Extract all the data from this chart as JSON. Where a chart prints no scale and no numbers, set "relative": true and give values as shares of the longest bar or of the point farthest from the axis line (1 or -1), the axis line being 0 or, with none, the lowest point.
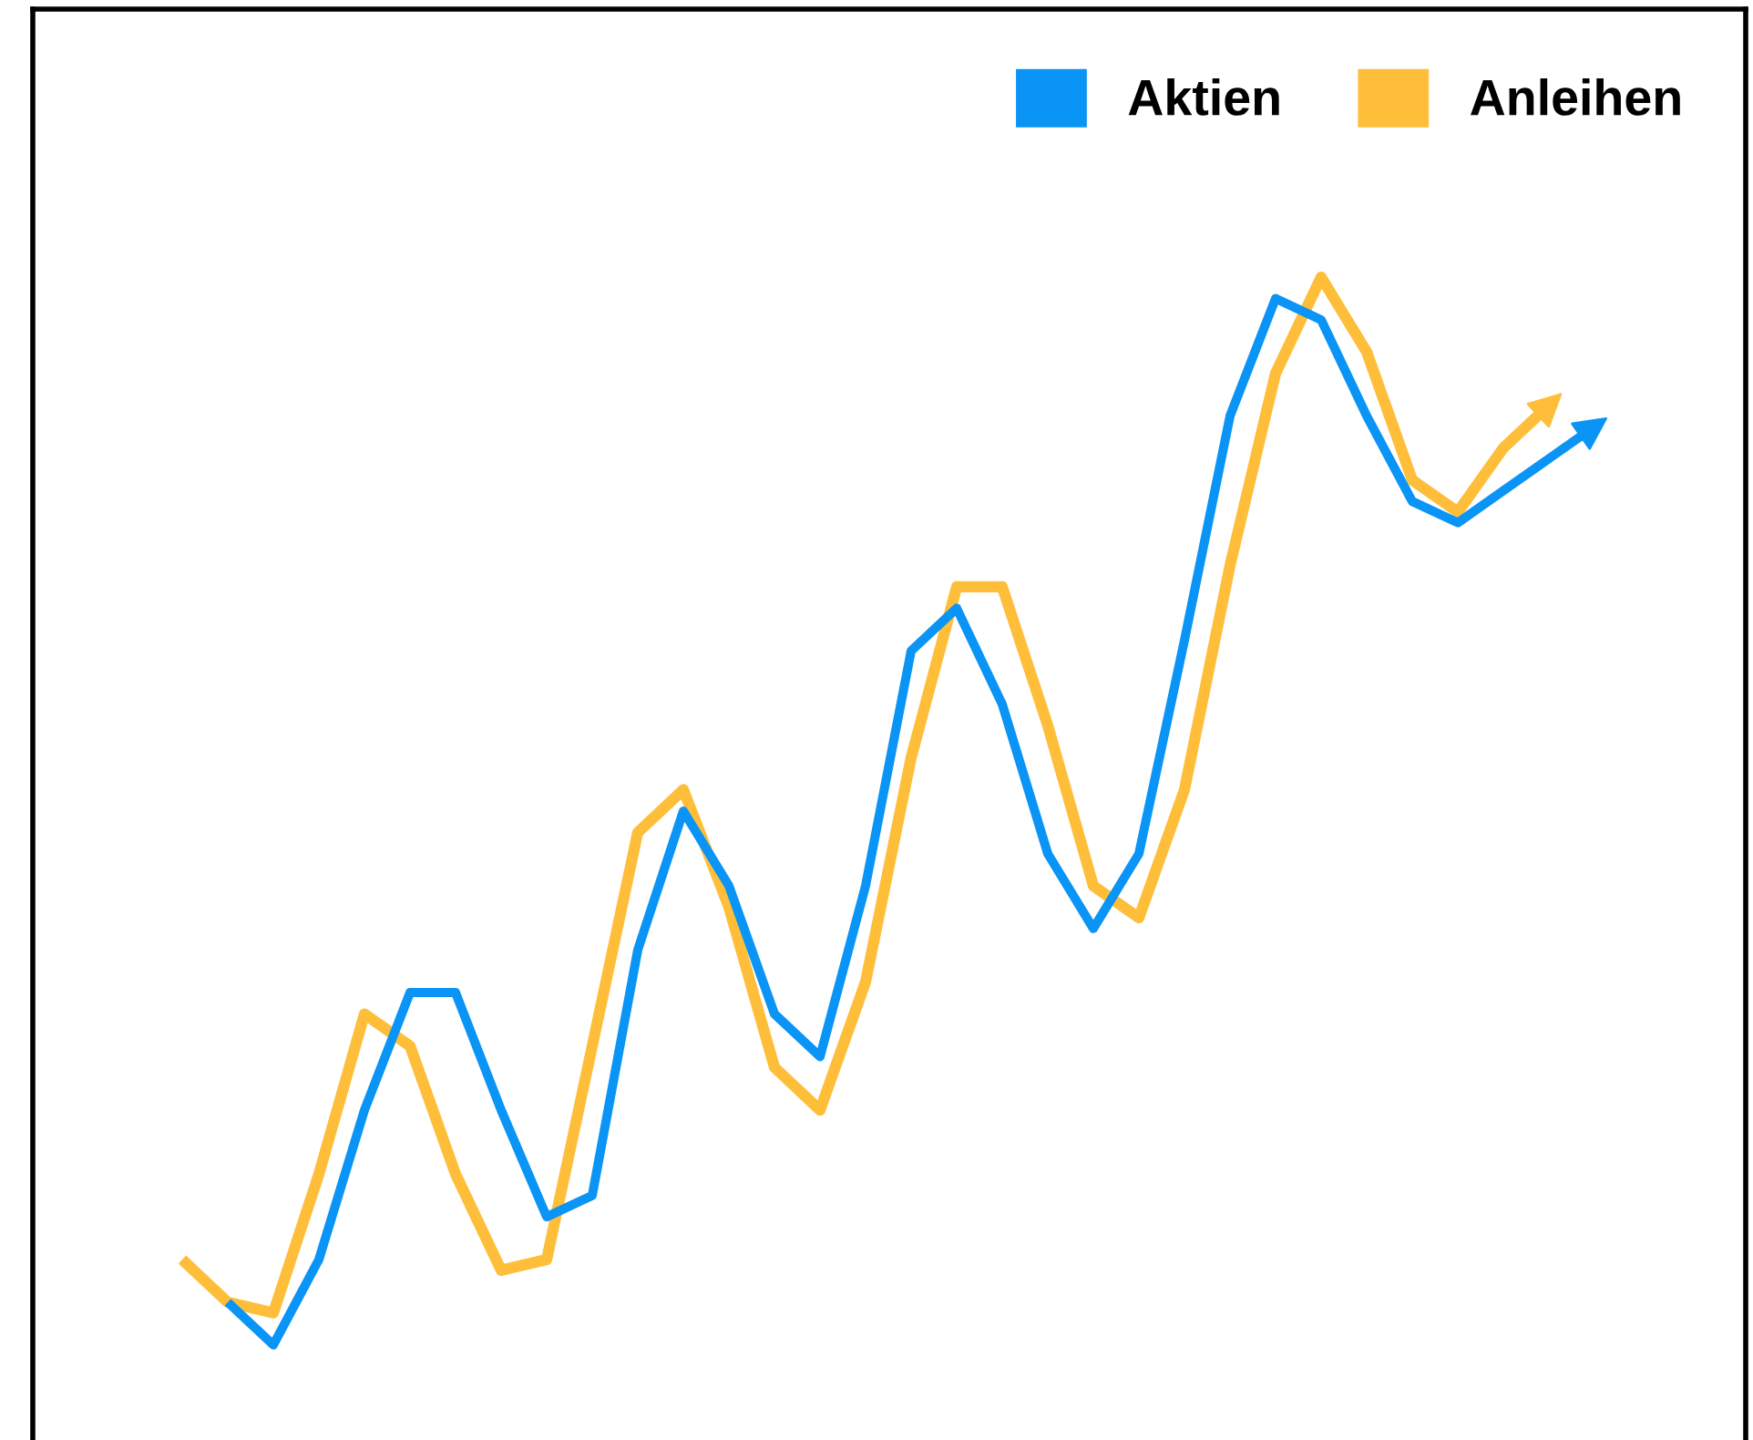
{
  "chart_data": {
    "type": "line",
    "relative": true,
    "legend": "top right",
    "marker": "none",
    "line_style": "solid",
    "categories": [
      null,
      null,
      null,
      null,
      null,
      null,
      null,
      null,
      null,
      null,
      null,
      null,
      null,
      null,
      null,
      null,
      null,
      null,
      null,
      null,
      null,
      null,
      null,
      null,
      null,
      null,
      null,
      null,
      null,
      null,
      null,
      null
    ],
    "series": [
      {
        "name": "Anleihen",
        "color": "#ffbe3a",
        "values": [
          0.08,
          0.04,
          0.03,
          0.16,
          0.31,
          0.28,
          0.16,
          0.07,
          0.08,
          0.28,
          0.48,
          0.52,
          0.41,
          0.26,
          0.22,
          0.34,
          0.55,
          0.71,
          0.71,
          0.58,
          0.43,
          0.4,
          0.52,
          0.73,
          0.91,
          1.0,
          0.93,
          0.81,
          0.78,
          0.84,
          0.88,
          null
        ]
      },
      {
        "name": "Aktien",
        "color": "#0a94f5",
        "values": [
          null,
          0.04,
          0.0,
          0.08,
          0.22,
          0.33,
          0.33,
          0.22,
          0.12,
          0.14,
          0.37,
          0.5,
          0.43,
          0.31,
          0.27,
          0.43,
          0.65,
          0.69,
          0.6,
          0.46,
          0.39,
          0.46,
          0.66,
          0.87,
          0.98,
          0.96,
          0.87,
          0.79,
          0.77,
          0.8,
          0.83,
          0.86
        ]
      }
    ]
  }
}
